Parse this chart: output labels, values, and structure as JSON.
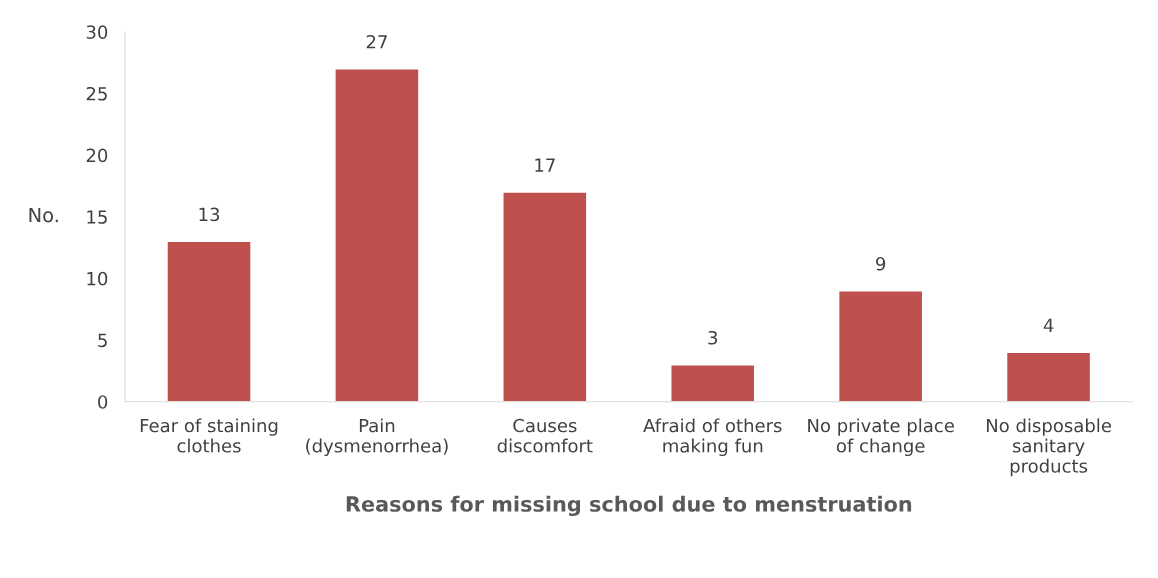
{
  "chart_data": {
    "type": "bar",
    "xlabel": "Reasons for missing school due to menstruation",
    "ylabel": "No.",
    "categories": [
      "Fear of staining\nclothes",
      "Pain\n(dysmenorrhea)",
      "Causes\ndiscomfort",
      "Afraid of others\nmaking fun",
      "No private place\nof change",
      "No disposable\nsanitary\nproducts"
    ],
    "values": [
      13,
      27,
      17,
      3,
      9,
      4
    ],
    "color": "#c0504d",
    "ylim": [
      0,
      30
    ],
    "yticks": [
      0,
      5,
      10,
      15,
      20,
      25,
      30
    ],
    "data_labels": true,
    "grid": false,
    "legend": false
  }
}
